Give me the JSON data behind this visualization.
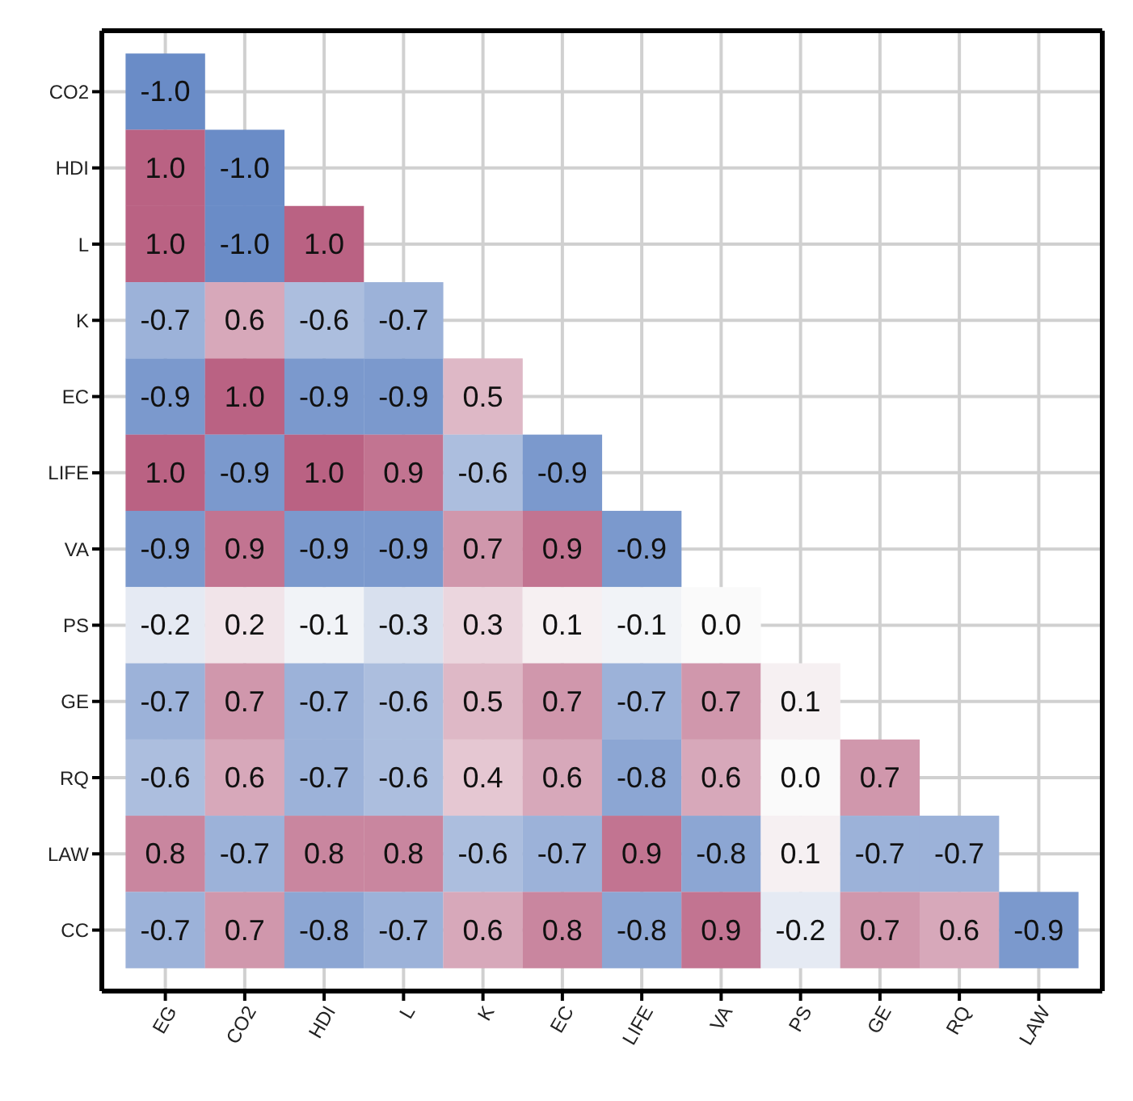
{
  "chart_data": {
    "type": "heatmap",
    "grid": true,
    "categories": [
      "EG",
      "CO2",
      "HDI",
      "L",
      "K",
      "EC",
      "LIFE",
      "VA",
      "PS",
      "GE",
      "RQ",
      "LAW"
    ],
    "y_categories": [
      "CO2",
      "HDI",
      "L",
      "K",
      "EC",
      "LIFE",
      "VA",
      "PS",
      "GE",
      "RQ",
      "LAW",
      "CC"
    ],
    "cells": [
      [
        -1.0,
        null,
        null,
        null,
        null,
        null,
        null,
        null,
        null,
        null,
        null,
        null
      ],
      [
        1.0,
        -1.0,
        null,
        null,
        null,
        null,
        null,
        null,
        null,
        null,
        null,
        null
      ],
      [
        1.0,
        -1.0,
        1.0,
        null,
        null,
        null,
        null,
        null,
        null,
        null,
        null,
        null
      ],
      [
        -0.7,
        0.6,
        -0.6,
        -0.7,
        null,
        null,
        null,
        null,
        null,
        null,
        null,
        null
      ],
      [
        -0.9,
        1.0,
        -0.9,
        -0.9,
        0.5,
        null,
        null,
        null,
        null,
        null,
        null,
        null
      ],
      [
        1.0,
        -0.9,
        1.0,
        0.9,
        -0.6,
        -0.9,
        null,
        null,
        null,
        null,
        null,
        null
      ],
      [
        -0.9,
        0.9,
        -0.9,
        -0.9,
        0.7,
        0.9,
        -0.9,
        null,
        null,
        null,
        null,
        null
      ],
      [
        -0.2,
        0.2,
        -0.1,
        -0.3,
        0.3,
        0.1,
        -0.1,
        0.0,
        null,
        null,
        null,
        null
      ],
      [
        -0.7,
        0.7,
        -0.7,
        -0.6,
        0.5,
        0.7,
        -0.7,
        0.7,
        0.1,
        null,
        null,
        null
      ],
      [
        -0.6,
        0.6,
        -0.7,
        -0.6,
        0.4,
        0.6,
        -0.8,
        0.6,
        0.0,
        0.7,
        null,
        null
      ],
      [
        0.8,
        -0.7,
        0.8,
        0.8,
        -0.6,
        -0.7,
        0.9,
        -0.8,
        0.1,
        -0.7,
        -0.7,
        null
      ],
      [
        -0.7,
        0.7,
        -0.8,
        -0.7,
        0.6,
        0.8,
        -0.8,
        0.9,
        -0.2,
        0.7,
        0.6,
        -0.9
      ]
    ],
    "cell_labels": [
      [
        "-1.0",
        null,
        null,
        null,
        null,
        null,
        null,
        null,
        null,
        null,
        null,
        null
      ],
      [
        "1.0",
        "-1.0",
        null,
        null,
        null,
        null,
        null,
        null,
        null,
        null,
        null,
        null
      ],
      [
        "1.0",
        "-1.0",
        "1.0",
        null,
        null,
        null,
        null,
        null,
        null,
        null,
        null,
        null
      ],
      [
        "-0.7",
        "0.6",
        "-0.6",
        "-0.7",
        null,
        null,
        null,
        null,
        null,
        null,
        null,
        null
      ],
      [
        "-0.9",
        "1.0",
        "-0.9",
        "-0.9",
        "0.5",
        null,
        null,
        null,
        null,
        null,
        null,
        null
      ],
      [
        "1.0",
        "-0.9",
        "1.0",
        "0.9",
        "-0.6",
        "-0.9",
        null,
        null,
        null,
        null,
        null,
        null
      ],
      [
        "-0.9",
        "0.9",
        "-0.9",
        "-0.9",
        "0.7",
        "0.9",
        "-0.9",
        null,
        null,
        null,
        null,
        null
      ],
      [
        "-0.2",
        "0.2",
        "-0.1",
        "-0.3",
        "0.3",
        "0.1",
        "-0.1",
        "0.0",
        null,
        null,
        null,
        null
      ],
      [
        "-0.7",
        "0.7",
        "-0.7",
        "-0.6",
        "0.5",
        "0.7",
        "-0.7",
        "0.7",
        "0.1",
        null,
        null,
        null
      ],
      [
        "-0.6",
        "0.6",
        "-0.7",
        "-0.6",
        "0.4",
        "0.6",
        "-0.8",
        "0.6",
        "0.0",
        "0.7",
        null,
        null
      ],
      [
        "0.8",
        "-0.7",
        "0.8",
        "0.8",
        "-0.6",
        "-0.7",
        "0.9",
        "-0.8",
        "0.1",
        "-0.7",
        "-0.7",
        null
      ],
      [
        "-0.7",
        "0.7",
        "-0.8",
        "-0.7",
        "0.6",
        "0.8",
        "-0.8",
        "0.9",
        "-0.2",
        "0.7",
        "0.6",
        "-0.9"
      ]
    ]
  }
}
